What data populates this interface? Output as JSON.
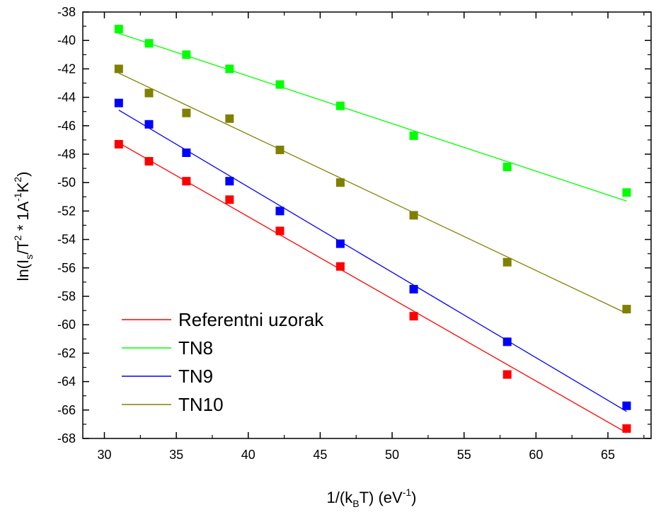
{
  "chart_data": {
    "type": "scatter",
    "title": "",
    "xlabel": {
      "base": "1/(k",
      "sub": "B",
      "mid": "T) (eV",
      "sup": "-1",
      "end": ")"
    },
    "ylabel": {
      "p1": "ln(I",
      "sub1": "s",
      "p2": "/T",
      "sup1": "2",
      "p3": " * 1A",
      "sup2": "-1",
      "p4": "K",
      "sup3": "2",
      "p5": ")"
    },
    "xlim": [
      28.5,
      68
    ],
    "ylim": [
      -68,
      -38
    ],
    "xticks": [
      30,
      35,
      40,
      45,
      50,
      55,
      60,
      65
    ],
    "yticks": [
      -38,
      -40,
      -42,
      -44,
      -46,
      -48,
      -50,
      -52,
      -54,
      -56,
      -58,
      -60,
      -62,
      -64,
      -66,
      -68
    ],
    "x": [
      31.0,
      33.1,
      35.7,
      38.7,
      42.2,
      46.4,
      51.5,
      58.0,
      66.3
    ],
    "series": [
      {
        "name": "Referentni uzorak",
        "color": "#ff0000",
        "values": [
          -47.3,
          -48.5,
          -49.9,
          -51.2,
          -53.4,
          -55.9,
          -59.4,
          -63.5,
          -67.3
        ],
        "fit": [
          [
            31.0,
            -47.2
          ],
          [
            66.3,
            -67.6
          ]
        ]
      },
      {
        "name": "TN8",
        "color": "#00ff00",
        "values": [
          -39.2,
          -40.2,
          -41.0,
          -42.0,
          -43.1,
          -44.6,
          -46.7,
          -48.9,
          -50.7
        ],
        "fit": [
          [
            31.0,
            -39.5
          ],
          [
            66.3,
            -51.3
          ]
        ]
      },
      {
        "name": "TN9",
        "color": "#0000ff",
        "values": [
          -44.4,
          -45.9,
          -47.9,
          -49.9,
          -52.0,
          -54.3,
          -57.5,
          -61.2,
          -65.7
        ],
        "fit": [
          [
            31.0,
            -44.9
          ],
          [
            66.3,
            -66.1
          ]
        ]
      },
      {
        "name": "TN10",
        "color": "#808000",
        "values": [
          -42.0,
          -43.7,
          -45.1,
          -45.5,
          -47.7,
          -50.0,
          -52.3,
          -55.6,
          -58.9
        ],
        "fit": [
          [
            31.0,
            -42.3
          ],
          [
            66.3,
            -59.2
          ]
        ]
      }
    ],
    "grid": false,
    "legend": "bottom-left"
  }
}
